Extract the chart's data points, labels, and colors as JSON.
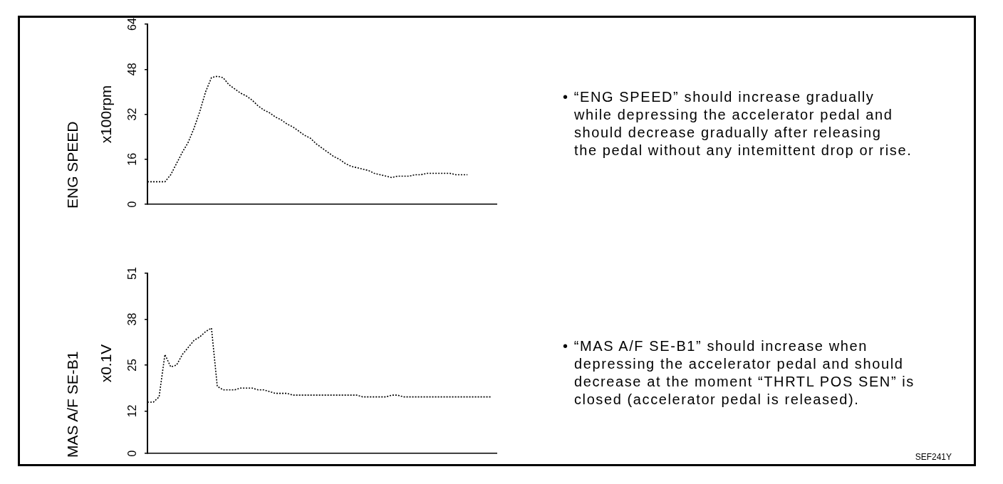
{
  "chart_data": [
    {
      "type": "line",
      "ylabel": "ENG SPEED\nx100rpm",
      "categories": [
        null,
        null,
        null,
        null,
        null,
        null,
        null,
        null,
        null,
        null,
        null,
        null,
        null,
        null,
        null,
        null,
        null,
        null,
        null,
        null,
        null,
        null,
        null,
        null,
        null,
        null,
        null,
        null,
        null,
        null,
        null,
        null,
        null,
        null,
        null,
        null,
        null,
        null,
        null,
        null,
        null,
        null,
        null,
        null,
        null,
        null,
        null,
        null,
        null,
        null,
        null,
        null,
        null,
        null,
        null,
        null,
        null,
        null,
        null,
        null,
        null
      ],
      "series": [
        {
          "color": "#000000",
          "values": [
            8,
            8,
            8,
            8,
            10.5,
            14.5,
            18.5,
            22,
            27,
            33,
            40,
            45,
            45.5,
            45,
            42.5,
            41,
            39.5,
            38.5,
            37,
            35,
            33.5,
            32.5,
            31,
            30,
            28.5,
            27.5,
            26,
            24.5,
            23.5,
            21.5,
            20,
            18.5,
            17,
            16,
            14.5,
            13.5,
            13,
            12.5,
            12,
            11,
            10.5,
            10,
            9.5,
            10,
            10,
            10,
            10.5,
            10.5,
            11,
            11,
            11,
            11,
            11,
            10.5,
            10.5,
            10.5,
            null,
            null,
            null,
            null,
            null
          ]
        }
      ],
      "ylim": [
        0,
        64
      ],
      "yticks": [
        0,
        16,
        32,
        48,
        64
      ],
      "tick_labels": "y",
      "marker": "none",
      "line_style": "dotted",
      "annotations": [
        "• “ENG SPEED” should increase gradually\nwhile depressing the accelerator pedal and\nshould decrease gradually after releasing\nthe pedal without any intemittent drop or rise."
      ]
    },
    {
      "type": "line",
      "ylabel": "MAS A/F SE-B1\nx0.1V",
      "categories": [
        null,
        null,
        null,
        null,
        null,
        null,
        null,
        null,
        null,
        null,
        null,
        null,
        null,
        null,
        null,
        null,
        null,
        null,
        null,
        null,
        null,
        null,
        null,
        null,
        null,
        null,
        null,
        null,
        null,
        null,
        null,
        null,
        null,
        null,
        null,
        null,
        null,
        null,
        null,
        null,
        null,
        null,
        null,
        null,
        null,
        null,
        null,
        null,
        null,
        null,
        null,
        null,
        null,
        null,
        null,
        null,
        null,
        null,
        null,
        null,
        null
      ],
      "series": [
        {
          "color": "#000000",
          "values": [
            14.5,
            14.5,
            16,
            28,
            24.5,
            25,
            28,
            30,
            32,
            33,
            34.5,
            35.5,
            19,
            18,
            18,
            18,
            18.5,
            18.5,
            18.5,
            18,
            18,
            17.5,
            17,
            17,
            17,
            16.5,
            16.5,
            16.5,
            16.5,
            16.5,
            16.5,
            16.5,
            16.5,
            16.5,
            16.5,
            16.5,
            16.5,
            16,
            16,
            16,
            16,
            16,
            16.5,
            16.5,
            16,
            16,
            16,
            16,
            16,
            16,
            16,
            16,
            16,
            16,
            16,
            16,
            16,
            16,
            16,
            16,
            null
          ]
        }
      ],
      "ylim": [
        0,
        51
      ],
      "yticks": [
        0,
        12,
        25,
        38,
        51
      ],
      "tick_labels": "y",
      "marker": "none",
      "line_style": "dotted",
      "annotations": [
        "• “MAS A/F SE-B1” should increase when\ndepressing the accelerator pedal and should\ndecrease at the moment “THRTL POS SEN” is\nclosed (accelerator pedal is released).",
        "SEF241Y"
      ]
    }
  ]
}
